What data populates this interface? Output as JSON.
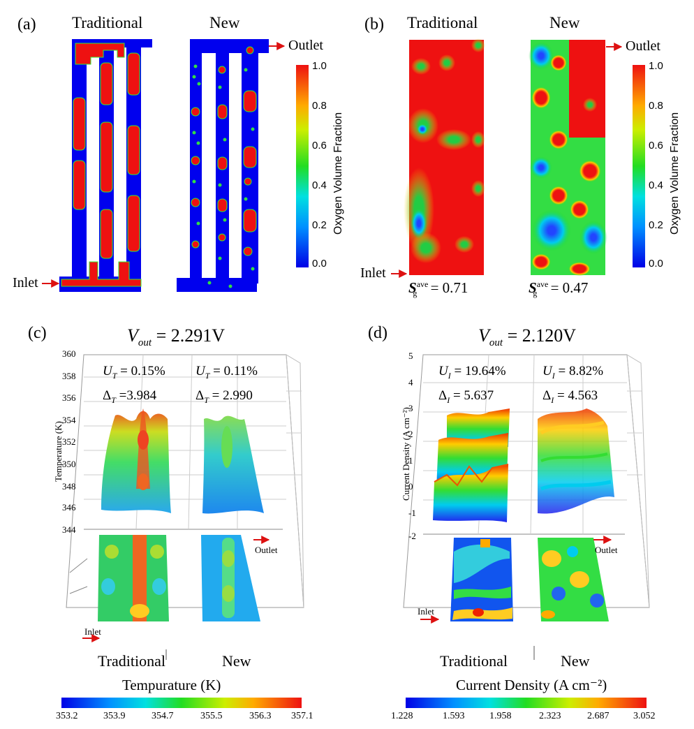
{
  "panel_a": {
    "label": "(a)",
    "col_traditional": "Traditional",
    "col_new": "New",
    "outlet": "Outlet",
    "inlet": "Inlet",
    "colorbar": {
      "title": "Oxygen Volume Fraction",
      "ticks": [
        "1.0",
        "0.8",
        "0.6",
        "0.4",
        "0.2",
        "0.0"
      ]
    }
  },
  "panel_b": {
    "label": "(b)",
    "col_traditional": "Traditional",
    "col_new": "New",
    "outlet": "Outlet",
    "inlet": "Inlet",
    "colorbar": {
      "title": "Oxygen Volume Fraction",
      "ticks": [
        "1.0",
        "0.8",
        "0.6",
        "0.4",
        "0.2",
        "0.0"
      ]
    },
    "sg_symbol": "S",
    "sg_sub": "g",
    "sg_sup": "ave",
    "sg_traditional": "= 0.71",
    "sg_new": "= 0.47"
  },
  "panel_c": {
    "label": "(c)",
    "vout_symbol": "V",
    "vout_sub": "out",
    "vout_value": "= 2.291V",
    "u_trad": "= 0.15%",
    "u_new": "= 0.11%",
    "delta_trad": "=3.984",
    "delta_new": "= 2.990",
    "u_symbol": "U",
    "u_sub": "T",
    "delta_symbol": "Δ",
    "delta_sub": "T",
    "z_axis_title": "Temperature (K)",
    "z_ticks": [
      "360",
      "358",
      "356",
      "354",
      "352",
      "350",
      "348",
      "346",
      "344"
    ],
    "outlet": "Outlet",
    "inlet": "Inlet",
    "x_traditional": "Traditional",
    "x_new": "New",
    "colorbar": {
      "title": "Tempurature (K)",
      "ticks": [
        "353.2",
        "353.9",
        "354.7",
        "355.5",
        "356.3",
        "357.1"
      ]
    }
  },
  "panel_d": {
    "label": "(d)",
    "vout_symbol": "V",
    "vout_sub": "out",
    "vout_value": "= 2.120V",
    "u_symbol": "U",
    "u_sub": "I",
    "u_trad": "= 19.64%",
    "u_new": "= 8.82%",
    "delta_symbol": "Δ",
    "delta_sub": "I",
    "delta_trad": "= 5.637",
    "delta_new": "= 4.563",
    "z_axis_title": "Current Density (A cm⁻²)",
    "z_ticks": [
      "5",
      "4",
      "3",
      "2",
      "1",
      "0",
      "-1",
      "-2"
    ],
    "outlet": "Outlet",
    "inlet": "Inlet",
    "x_traditional": "Traditional",
    "x_new": "New",
    "colorbar": {
      "title": "Current Density (A cm⁻²)",
      "ticks": [
        "1.228",
        "1.593",
        "1.958",
        "2.323",
        "2.687",
        "3.052"
      ]
    }
  }
}
